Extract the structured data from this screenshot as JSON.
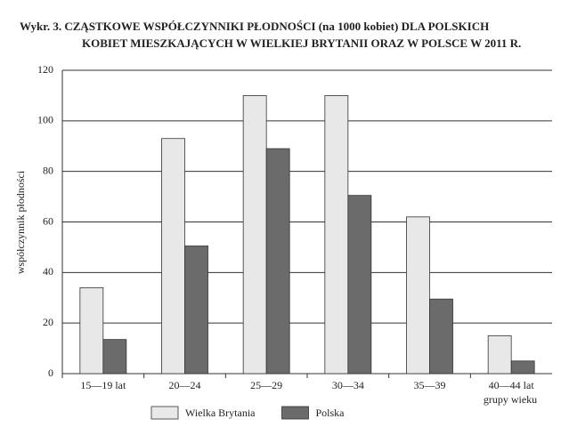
{
  "chart_data": {
    "type": "bar",
    "title": [
      "Wykr. 3. CZĄSTKOWE WSPÓŁCZYNNIKI PŁODNOŚCI (na 1000 kobiet) DLA POLSKICH",
      "KOBIET MIESZKAJĄCYCH W WIELKIEJ BRYTANII ORAZ W POLSCE W 2011 R."
    ],
    "y_label": "współczynnik płodności",
    "x_label": "grupy wieku",
    "categories": [
      "15—19 lat",
      "20—24",
      "25—29",
      "30—34",
      "35—39",
      "40—44 lat"
    ],
    "series": [
      {
        "name": "Wielka Brytania",
        "color": "#e8e8e8",
        "values": [
          34,
          93,
          110,
          110,
          62,
          15
        ]
      },
      {
        "name": "Polska",
        "color": "#6b6b6b",
        "values": [
          13.5,
          50.5,
          89,
          70.5,
          29.5,
          5
        ]
      }
    ],
    "ylim": [
      0,
      120
    ],
    "yticks": [
      0,
      20,
      40,
      60,
      80,
      100,
      120
    ],
    "grid": true,
    "legend": "bottom"
  }
}
